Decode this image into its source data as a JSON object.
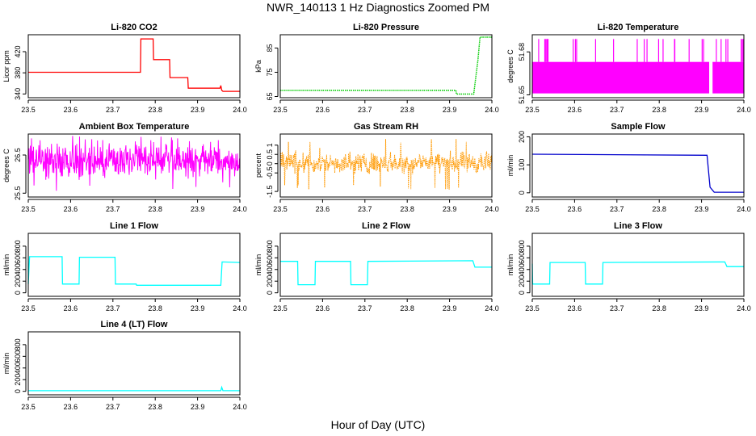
{
  "title": "NWR_140113  1 Hz Diagnostics Zoomed PM",
  "xlabel": "Hour of Day (UTC)",
  "chart_data": [
    {
      "type": "line",
      "title": "Li-820 CO2",
      "ylabel": "Licor ppm",
      "xlim": [
        23.5,
        24.0
      ],
      "ylim": [
        333,
        452
      ],
      "xticks": [
        23.5,
        23.6,
        23.7,
        23.8,
        23.9,
        24.0
      ],
      "yticks": [
        340,
        380,
        420
      ],
      "color": "#ff0000",
      "style": "line",
      "x": [
        23.5,
        23.765,
        23.766,
        23.795,
        23.796,
        23.834,
        23.835,
        23.877,
        23.878,
        23.953,
        23.955,
        23.957,
        23.96,
        24.0
      ],
      "y": [
        381,
        381,
        444,
        444,
        405,
        405,
        371,
        371,
        351,
        351,
        356,
        347,
        345,
        345
      ]
    },
    {
      "type": "line",
      "title": "Li-820 Pressure",
      "ylabel": "kPa",
      "xlim": [
        23.5,
        24.0
      ],
      "ylim": [
        64.5,
        90.5
      ],
      "xticks": [
        23.5,
        23.6,
        23.7,
        23.8,
        23.9,
        24.0
      ],
      "yticks": [
        65,
        75,
        85
      ],
      "color": "#00cc00",
      "style": "dotted",
      "x": [
        23.5,
        23.915,
        23.916,
        23.957,
        23.967,
        23.972,
        24.0
      ],
      "y": [
        67.5,
        67.5,
        66.0,
        66.0,
        80.0,
        89.5,
        89.5
      ]
    },
    {
      "type": "line",
      "title": "Li-820 Temperature",
      "ylabel": "degrees C",
      "xlim": [
        23.5,
        24.0
      ],
      "ylim": [
        51.648,
        51.692
      ],
      "xticks": [
        23.5,
        23.6,
        23.7,
        23.8,
        23.9,
        24.0
      ],
      "yticks": [
        51.65,
        51.68
      ],
      "color": "#ff00ff",
      "style": "band",
      "band": [
        51.651,
        51.673
      ],
      "spike_high": 51.689,
      "gap": [
        23.918,
        23.926
      ]
    },
    {
      "type": "line",
      "title": "Ambient Box Temperature",
      "ylabel": "degrees C",
      "xlim": [
        23.5,
        24.0
      ],
      "ylim": [
        25.4,
        27.05
      ],
      "xticks": [
        23.5,
        23.6,
        23.7,
        23.8,
        23.9,
        24.0
      ],
      "yticks": [
        25.5,
        26.5
      ],
      "color": "#ff00ff",
      "style": "noise",
      "center": 26.35,
      "spread": 0.42,
      "min": 25.55,
      "max": 27.0
    },
    {
      "type": "line",
      "title": "Gas Stream RH",
      "ylabel": "percent",
      "xlim": [
        23.5,
        24.0
      ],
      "ylim": [
        -1.8,
        1.6
      ],
      "xticks": [
        23.5,
        23.6,
        23.7,
        23.8,
        23.9,
        24.0
      ],
      "yticks": [
        -1.5,
        -0.5,
        0.0,
        0.5,
        1.0
      ],
      "color": "#ff9900",
      "style": "noise",
      "center": 0.05,
      "spread": 0.55,
      "min": -1.4,
      "max": 1.4
    },
    {
      "type": "line",
      "title": "Sample Flow",
      "ylabel": "ml/min",
      "xlim": [
        23.5,
        24.0
      ],
      "ylim": [
        -15,
        210
      ],
      "xticks": [
        23.5,
        23.6,
        23.7,
        23.8,
        23.9,
        24.0
      ],
      "yticks": [
        0,
        100,
        200
      ],
      "color": "#0000cc",
      "style": "line",
      "x": [
        23.5,
        23.913,
        23.92,
        23.93,
        24.0
      ],
      "y": [
        138,
        134,
        20,
        2,
        2
      ]
    },
    {
      "type": "line",
      "title": "Line 1 Flow",
      "ylabel": "ml/min",
      "xlim": [
        23.5,
        24.0
      ],
      "ylim": [
        -60,
        1020
      ],
      "xticks": [
        23.5,
        23.6,
        23.7,
        23.8,
        23.9,
        24.0
      ],
      "yticks": [
        0,
        200,
        400,
        600,
        800
      ],
      "color": "#00ffff",
      "style": "line",
      "x": [
        23.5,
        23.503,
        23.58,
        23.581,
        23.62,
        23.621,
        23.705,
        23.706,
        23.755,
        23.756,
        23.955,
        23.958,
        24.0
      ],
      "y": [
        150,
        620,
        620,
        150,
        150,
        610,
        610,
        150,
        150,
        130,
        130,
        530,
        520
      ]
    },
    {
      "type": "line",
      "title": "Line 2 Flow",
      "ylabel": "ml/min",
      "xlim": [
        23.5,
        24.0
      ],
      "ylim": [
        -60,
        1020
      ],
      "xticks": [
        23.5,
        23.6,
        23.7,
        23.8,
        23.9,
        24.0
      ],
      "yticks": [
        0,
        200,
        400,
        600,
        800
      ],
      "color": "#00ffff",
      "style": "line",
      "x": [
        23.5,
        23.541,
        23.542,
        23.582,
        23.583,
        23.666,
        23.667,
        23.706,
        23.707,
        23.955,
        23.96,
        24.0
      ],
      "y": [
        540,
        540,
        140,
        140,
        540,
        540,
        140,
        140,
        540,
        550,
        440,
        440
      ]
    },
    {
      "type": "line",
      "title": "Line 3 Flow",
      "ylabel": "ml/min",
      "xlim": [
        23.5,
        24.0
      ],
      "ylim": [
        -60,
        1020
      ],
      "xticks": [
        23.5,
        23.6,
        23.7,
        23.8,
        23.9,
        24.0
      ],
      "yticks": [
        0,
        200,
        400,
        600,
        800
      ],
      "color": "#00ffff",
      "style": "line",
      "x": [
        23.5,
        23.501,
        23.541,
        23.542,
        23.625,
        23.626,
        23.666,
        23.667,
        23.955,
        23.96,
        24.0
      ],
      "y": [
        500,
        150,
        150,
        520,
        520,
        150,
        150,
        520,
        530,
        450,
        450
      ]
    },
    {
      "type": "line",
      "title": "Line 4 (LT) Flow",
      "ylabel": "ml/min",
      "xlim": [
        23.5,
        24.0
      ],
      "ylim": [
        -60,
        1020
      ],
      "xticks": [
        23.5,
        23.6,
        23.7,
        23.8,
        23.9,
        24.0
      ],
      "yticks": [
        0,
        200,
        400,
        600,
        800
      ],
      "color": "#00ffff",
      "style": "line",
      "x": [
        23.5,
        23.955,
        23.957,
        23.96,
        24.0
      ],
      "y": [
        10,
        10,
        70,
        10,
        10
      ]
    }
  ]
}
